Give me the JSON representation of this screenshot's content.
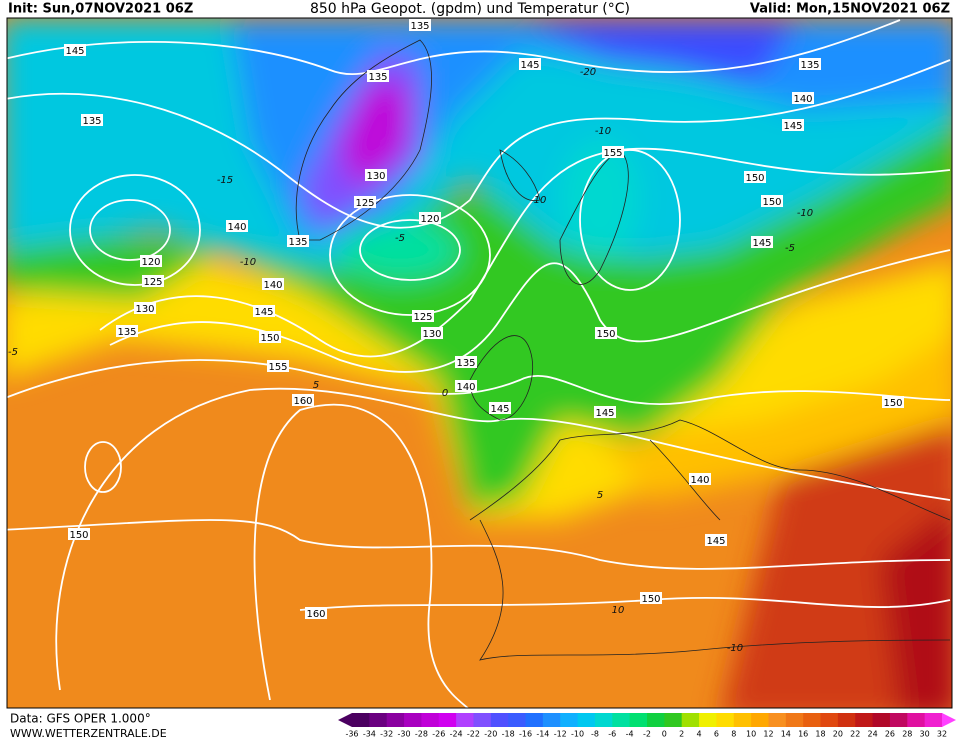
{
  "header": {
    "init": "Init: Sun,07NOV2021 06Z",
    "title": "850 hPa Geopot. (gpdm) und Temperatur (°C)",
    "valid": "Valid: Mon,15NOV2021 06Z"
  },
  "footer": {
    "data": "Data: GFS OPER 1.000°",
    "url": "WWW.WETTERZENTRALE.DE"
  },
  "legend": {
    "labels": [
      "-36",
      "-34",
      "-32",
      "-30",
      "-28",
      "-26",
      "-24",
      "-22",
      "-20",
      "-18",
      "-16",
      "-14",
      "-12",
      "-10",
      "-8",
      "-6",
      "-4",
      "-2",
      "0",
      "2",
      "4",
      "6",
      "8",
      "10",
      "12",
      "14",
      "16",
      "18",
      "20",
      "22",
      "24",
      "26",
      "28",
      "30",
      "32"
    ],
    "colors": [
      "#4b0060",
      "#6a0080",
      "#8a00a0",
      "#a800c0",
      "#c000d8",
      "#d000f0",
      "#b040ff",
      "#8050ff",
      "#5050ff",
      "#3a5cff",
      "#2070ff",
      "#1e90ff",
      "#10b0ff",
      "#00c8f0",
      "#00d8d0",
      "#00e0a0",
      "#00e070",
      "#10d040",
      "#30c820",
      "#a0e000",
      "#f0f000",
      "#ffdc00",
      "#ffc000",
      "#ffa800",
      "#f89020",
      "#f07818",
      "#e86010",
      "#e04810",
      "#d03010",
      "#c01818",
      "#b00828",
      "#c00860",
      "#e010a0",
      "#f020d0",
      "#ff40ff"
    ]
  },
  "map": {
    "geopotential_labels": [
      "135",
      "145",
      "135",
      "145",
      "135",
      "140",
      "145",
      "135",
      "155",
      "130",
      "150",
      "125",
      "150",
      "120",
      "140",
      "135",
      "145",
      "120",
      "125",
      "140",
      "130",
      "145",
      "125",
      "135",
      "130",
      "150",
      "150",
      "135",
      "155",
      "140",
      "160",
      "150",
      "145",
      "145",
      "140",
      "150",
      "145",
      "150",
      "160"
    ],
    "temperature_labels": [
      "-20",
      "-10",
      "-15",
      "-10",
      "-5",
      "-10",
      "-5",
      "-5",
      "0",
      "5",
      "10",
      "-10",
      "10",
      "5"
    ]
  }
}
